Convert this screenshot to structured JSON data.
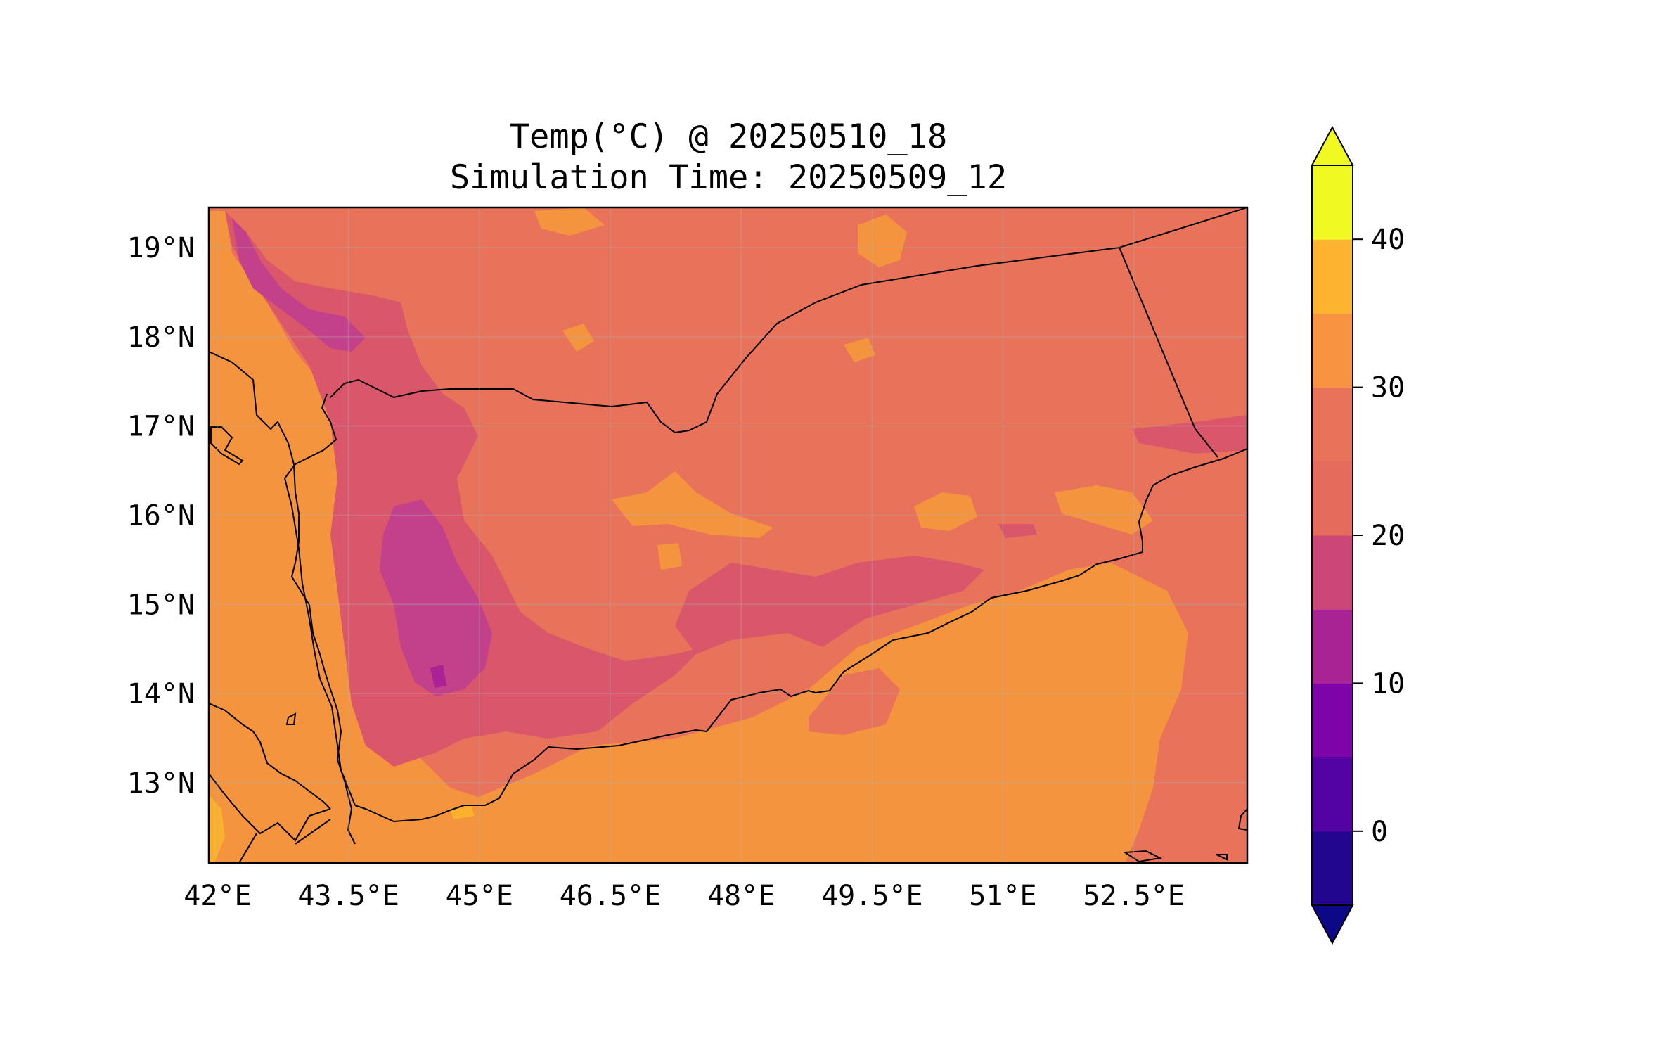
{
  "title": {
    "line1": "Temp(°C) @ 20250510_18",
    "line2": "Simulation Time: 20250509_12"
  },
  "map": {
    "lon_range": [
      41.9,
      53.8
    ],
    "lat_range": [
      12.1,
      19.45
    ],
    "x_ticks": [
      {
        "value": 42.0,
        "label": "42°E"
      },
      {
        "value": 43.5,
        "label": "43.5°E"
      },
      {
        "value": 45.0,
        "label": "45°E"
      },
      {
        "value": 46.5,
        "label": "46.5°E"
      },
      {
        "value": 48.0,
        "label": "48°E"
      },
      {
        "value": 49.5,
        "label": "49.5°E"
      },
      {
        "value": 51.0,
        "label": "51°E"
      },
      {
        "value": 52.5,
        "label": "52.5°E"
      }
    ],
    "y_ticks": [
      {
        "value": 19,
        "label": "19°N"
      },
      {
        "value": 18,
        "label": "18°N"
      },
      {
        "value": 17,
        "label": "17°N"
      },
      {
        "value": 16,
        "label": "16°N"
      },
      {
        "value": 15,
        "label": "15°N"
      },
      {
        "value": 14,
        "label": "14°N"
      },
      {
        "value": 13,
        "label": "13°N"
      }
    ],
    "gridlines": true
  },
  "colorbar": {
    "levels": [
      -5,
      0,
      5,
      10,
      15,
      20,
      25,
      30,
      35,
      40,
      45
    ],
    "colors": [
      "#220690",
      "#5302a3",
      "#7e03a8",
      "#a92395",
      "#cc4778",
      "#e56b5d",
      "#e8735a",
      "#f89441",
      "#fdb32f",
      "#f0f921"
    ],
    "under_color": "#0d0887",
    "over_color": "#f0f921",
    "extend": "both",
    "ticks": [
      {
        "value": 0,
        "label": "0"
      },
      {
        "value": 10,
        "label": "10"
      },
      {
        "value": 20,
        "label": "20"
      },
      {
        "value": 30,
        "label": "30"
      },
      {
        "value": 40,
        "label": "40"
      }
    ]
  },
  "field_colors": {
    "hot": "#f5943f",
    "warm": "#e8725a",
    "mild": "#d9566b",
    "cool": "#c2418a",
    "cold": "#a92395",
    "peak": "#fbb02e"
  }
}
